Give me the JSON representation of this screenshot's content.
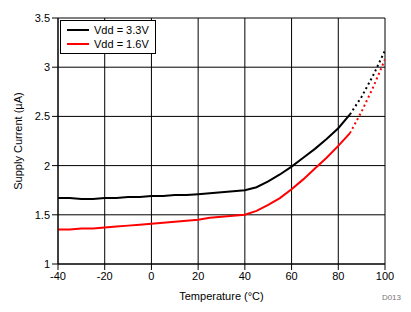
{
  "chart_data": {
    "type": "line",
    "x_label": "Temperature (°C)",
    "y_label": "Supply Current (µA)",
    "annotation": "D013",
    "x": [
      -40,
      -35,
      -30,
      -25,
      -20,
      -15,
      -10,
      -5,
      0,
      5,
      10,
      15,
      20,
      25,
      30,
      35,
      40,
      45,
      50,
      55,
      60,
      65,
      70,
      75,
      80,
      85,
      90,
      95,
      100
    ],
    "series": [
      {
        "name": "Vdd = 3.3V",
        "color": "#000000",
        "line_style": "solid",
        "values": [
          1.67,
          1.67,
          1.66,
          1.66,
          1.67,
          1.67,
          1.68,
          1.68,
          1.69,
          1.69,
          1.7,
          1.7,
          1.71,
          1.72,
          1.73,
          1.74,
          1.75,
          1.78,
          1.84,
          1.91,
          1.99,
          2.08,
          2.17,
          2.27,
          2.38,
          2.52,
          null,
          null,
          null
        ]
      },
      {
        "name": "Vdd = 1.6V",
        "color": "#ff0000",
        "line_style": "solid",
        "values": [
          1.35,
          1.35,
          1.36,
          1.36,
          1.37,
          1.38,
          1.39,
          1.4,
          1.41,
          1.42,
          1.43,
          1.44,
          1.45,
          1.47,
          1.48,
          1.49,
          1.5,
          1.54,
          1.6,
          1.67,
          1.76,
          1.86,
          1.97,
          2.08,
          2.2,
          2.33,
          null,
          null,
          null
        ]
      },
      {
        "name": "Vdd = 3.3V",
        "color": "#000000",
        "line_style": "dotted",
        "values": [
          null,
          null,
          null,
          null,
          null,
          null,
          null,
          null,
          null,
          null,
          null,
          null,
          null,
          null,
          null,
          null,
          null,
          null,
          null,
          null,
          null,
          null,
          null,
          null,
          null,
          2.52,
          2.7,
          2.92,
          3.17
        ]
      },
      {
        "name": "Vdd = 1.6V",
        "color": "#ff0000",
        "line_style": "dotted",
        "values": [
          null,
          null,
          null,
          null,
          null,
          null,
          null,
          null,
          null,
          null,
          null,
          null,
          null,
          null,
          null,
          null,
          null,
          null,
          null,
          null,
          null,
          null,
          null,
          null,
          null,
          2.33,
          2.55,
          2.8,
          3.08
        ]
      }
    ],
    "xlim": [
      -40,
      100
    ],
    "xticks": [
      -40,
      -20,
      0,
      20,
      40,
      60,
      80,
      100
    ],
    "ylim": [
      1,
      3.5
    ],
    "yticks": [
      1,
      1.5,
      2,
      2.5,
      3,
      3.5
    ],
    "grid": true,
    "legend": "upper left"
  }
}
